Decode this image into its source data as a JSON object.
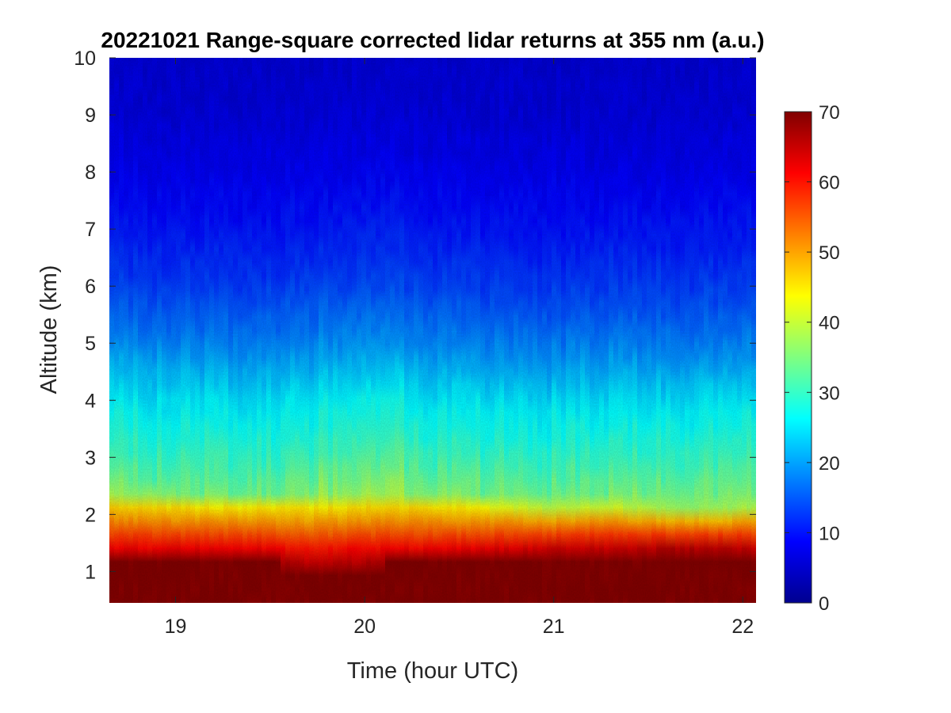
{
  "chart_data": {
    "type": "heatmap",
    "title": "20221021  Range-square corrected lidar returns at 355 nm (a.u.)",
    "xlabel": "Time (hour UTC)",
    "ylabel": "Altitude (km)",
    "xlim": [
      18.65,
      22.07
    ],
    "ylim": [
      0.45,
      10
    ],
    "xticks": [
      19,
      20,
      21,
      22
    ],
    "yticks": [
      1,
      2,
      3,
      4,
      5,
      6,
      7,
      8,
      9,
      10
    ],
    "colorbar": {
      "colormap": "jet",
      "clim": [
        0,
        70
      ],
      "ticks": [
        0,
        10,
        20,
        30,
        40,
        50,
        60,
        70
      ]
    },
    "aerosol_layer": {
      "top_altitude_km": {
        "times": [
          18.65,
          18.9,
          19.2,
          19.5,
          19.7,
          19.75,
          20.0,
          20.2,
          20.5,
          20.8,
          21.0,
          21.3,
          21.6,
          21.9,
          22.07
        ],
        "values": [
          2.25,
          2.2,
          2.15,
          2.15,
          2.15,
          2.15,
          2.2,
          2.2,
          2.15,
          2.1,
          2.05,
          2.1,
          2.0,
          2.0,
          2.05
        ]
      },
      "dense_core_top_km": {
        "times": [
          18.65,
          18.9,
          19.2,
          19.5,
          19.7,
          20.0,
          20.3,
          20.6,
          21.0,
          21.3,
          21.6,
          21.9,
          22.07
        ],
        "values": [
          1.2,
          1.2,
          1.25,
          1.2,
          1.1,
          1.15,
          1.2,
          1.25,
          1.35,
          1.35,
          1.4,
          1.4,
          1.35
        ]
      }
    },
    "profile": {
      "altitudes_km": [
        0.5,
        1.0,
        1.5,
        2.0,
        2.3,
        3.0,
        4.0,
        5.0,
        6.0,
        7.0,
        8.0,
        9.0,
        10.0
      ],
      "values": [
        70,
        68,
        55,
        45,
        35,
        30,
        25,
        18,
        13,
        10,
        8,
        6.5,
        6
      ]
    }
  }
}
